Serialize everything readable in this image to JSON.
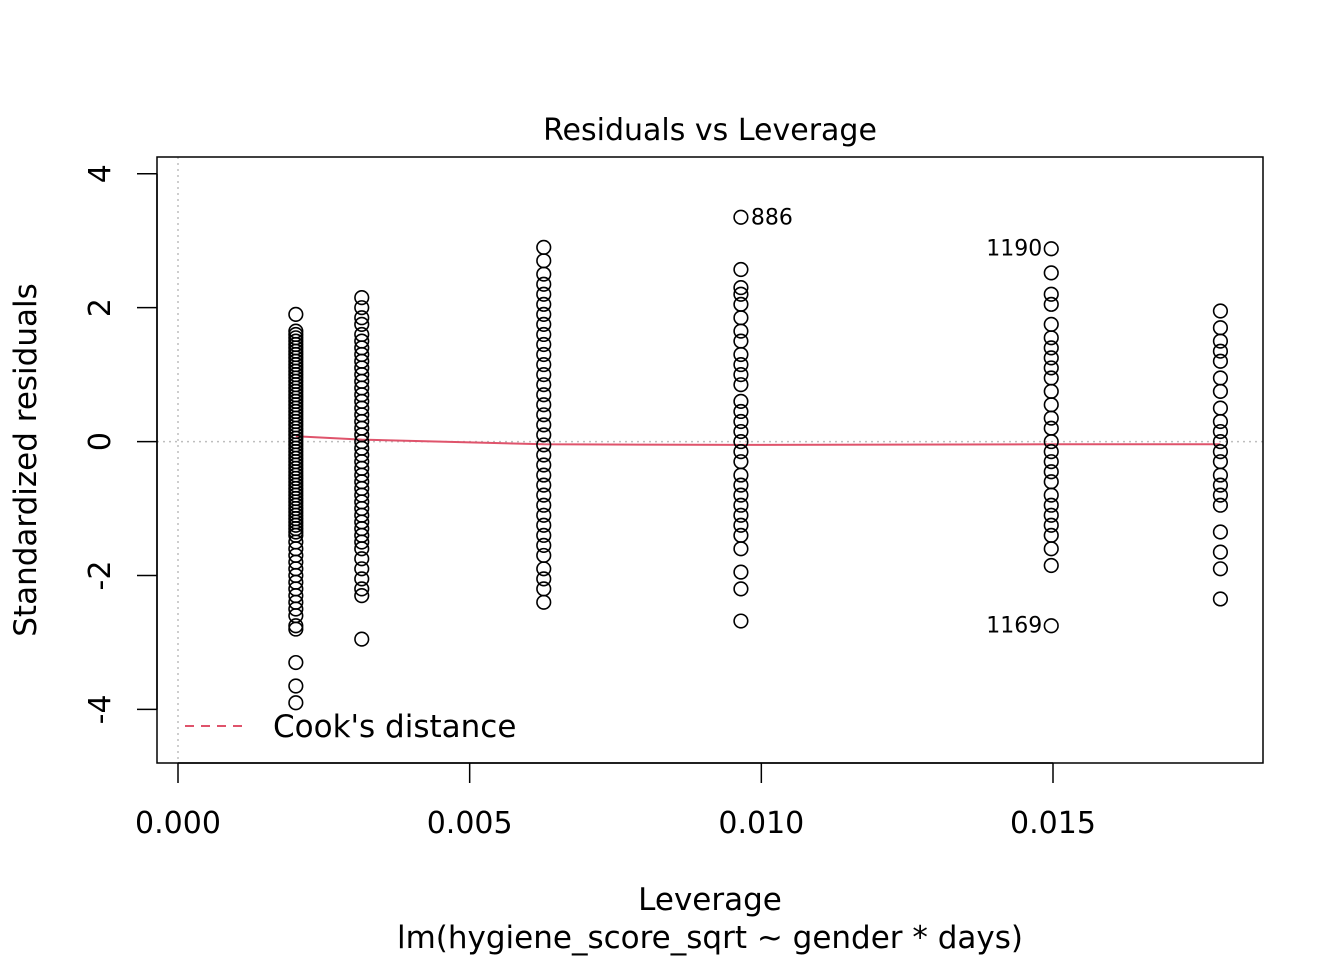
{
  "chart_data": {
    "type": "scatter",
    "title": "Residuals vs Leverage",
    "xlabel": "Leverage",
    "subtitle": "lm(hygiene_score_sqrt ~ gender * days)",
    "ylabel": "Standardized residuals",
    "xlim": [
      -0.00036,
      0.0186
    ],
    "ylim": [
      -4.8,
      4.25
    ],
    "x_ticks": [
      {
        "value": 0.0,
        "label": "0.000"
      },
      {
        "value": 0.005,
        "label": "0.005"
      },
      {
        "value": 0.01,
        "label": "0.010"
      },
      {
        "value": 0.015,
        "label": "0.015"
      }
    ],
    "y_ticks": [
      {
        "value": -4,
        "label": "-4"
      },
      {
        "value": -2,
        "label": "-2"
      },
      {
        "value": 0,
        "label": "0"
      },
      {
        "value": 2,
        "label": "2"
      },
      {
        "value": 4,
        "label": "4"
      }
    ],
    "reference_lines": {
      "x": 0,
      "y": 0,
      "style": "dotted",
      "color": "#bebebe"
    },
    "colors": {
      "points": "#000000",
      "smooth": "#DF536B",
      "reference": "#bebebe"
    },
    "legend": {
      "entry": "Cook's distance",
      "placement": "bottom-left",
      "line_style": "dashed",
      "color": "#DF536B"
    },
    "smooth_line": {
      "x": [
        0.00202,
        0.00315,
        0.00627,
        0.00965,
        0.01497,
        0.01787
      ],
      "y": [
        0.08,
        0.03,
        -0.04,
        -0.05,
        -0.04,
        -0.04
      ]
    },
    "groups": [
      {
        "x": 0.00202,
        "y": [
          1.9,
          1.65,
          1.6,
          1.55,
          1.5,
          1.45,
          1.4,
          1.35,
          1.3,
          1.25,
          1.2,
          1.15,
          1.1,
          1.05,
          1.0,
          0.95,
          0.9,
          0.85,
          0.8,
          0.75,
          0.7,
          0.65,
          0.6,
          0.55,
          0.5,
          0.45,
          0.4,
          0.35,
          0.3,
          0.25,
          0.2,
          0.15,
          0.1,
          0.05,
          0.0,
          -0.05,
          -0.1,
          -0.15,
          -0.2,
          -0.25,
          -0.3,
          -0.35,
          -0.4,
          -0.45,
          -0.5,
          -0.55,
          -0.6,
          -0.65,
          -0.7,
          -0.75,
          -0.8,
          -0.85,
          -0.9,
          -0.95,
          -1.0,
          -1.05,
          -1.1,
          -1.15,
          -1.2,
          -1.25,
          -1.3,
          -1.35,
          -1.4,
          -1.5,
          -1.6,
          -1.7,
          -1.8,
          -1.9,
          -2.0,
          -2.1,
          -2.2,
          -2.3,
          -2.4,
          -2.5,
          -2.6,
          -2.75,
          -2.8,
          -3.3,
          -3.65,
          -3.9
        ]
      },
      {
        "x": 0.00315,
        "y": [
          2.15,
          2.0,
          1.85,
          1.75,
          1.6,
          1.5,
          1.4,
          1.3,
          1.2,
          1.1,
          1.0,
          0.9,
          0.8,
          0.7,
          0.6,
          0.5,
          0.4,
          0.3,
          0.2,
          0.1,
          0.0,
          -0.1,
          -0.2,
          -0.3,
          -0.4,
          -0.5,
          -0.6,
          -0.7,
          -0.8,
          -0.9,
          -1.0,
          -1.1,
          -1.2,
          -1.3,
          -1.4,
          -1.5,
          -1.6,
          -1.75,
          -1.9,
          -2.05,
          -2.2,
          -2.3,
          -2.95
        ]
      },
      {
        "x": 0.00627,
        "y": [
          2.9,
          2.7,
          2.5,
          2.35,
          2.2,
          2.05,
          1.9,
          1.75,
          1.6,
          1.45,
          1.3,
          1.15,
          1.0,
          0.85,
          0.7,
          0.55,
          0.4,
          0.25,
          0.1,
          -0.05,
          -0.2,
          -0.35,
          -0.5,
          -0.65,
          -0.8,
          -0.95,
          -1.1,
          -1.25,
          -1.4,
          -1.55,
          -1.7,
          -1.9,
          -2.05,
          -2.2,
          -2.4
        ]
      },
      {
        "x": 0.00965,
        "y": [
          3.35,
          2.57,
          2.3,
          2.2,
          2.05,
          1.85,
          1.65,
          1.5,
          1.3,
          1.15,
          1.0,
          0.85,
          0.6,
          0.45,
          0.3,
          0.15,
          0.0,
          -0.15,
          -0.3,
          -0.5,
          -0.65,
          -0.8,
          -0.95,
          -1.1,
          -1.25,
          -1.4,
          -1.6,
          -1.95,
          -2.2,
          -2.68
        ]
      },
      {
        "x": 0.01497,
        "y": [
          2.88,
          2.52,
          2.2,
          2.05,
          1.75,
          1.55,
          1.4,
          1.25,
          1.1,
          0.95,
          0.75,
          0.55,
          0.35,
          0.2,
          0.0,
          -0.15,
          -0.3,
          -0.45,
          -0.6,
          -0.8,
          -0.95,
          -1.1,
          -1.25,
          -1.4,
          -1.6,
          -1.85,
          -2.75
        ]
      },
      {
        "x": 0.01787,
        "y": [
          1.95,
          1.7,
          1.5,
          1.35,
          1.2,
          0.95,
          0.75,
          0.5,
          0.3,
          0.15,
          0.0,
          -0.15,
          -0.3,
          -0.5,
          -0.65,
          -0.8,
          -0.95,
          -1.35,
          -1.65,
          -1.9,
          -2.35
        ]
      }
    ],
    "labeled_points": [
      {
        "label": "886",
        "x": 0.00965,
        "y": 3.35,
        "side": "right"
      },
      {
        "label": "1190",
        "x": 0.01497,
        "y": 2.88,
        "side": "left"
      },
      {
        "label": "1169",
        "x": 0.01497,
        "y": -2.75,
        "side": "left"
      }
    ]
  }
}
